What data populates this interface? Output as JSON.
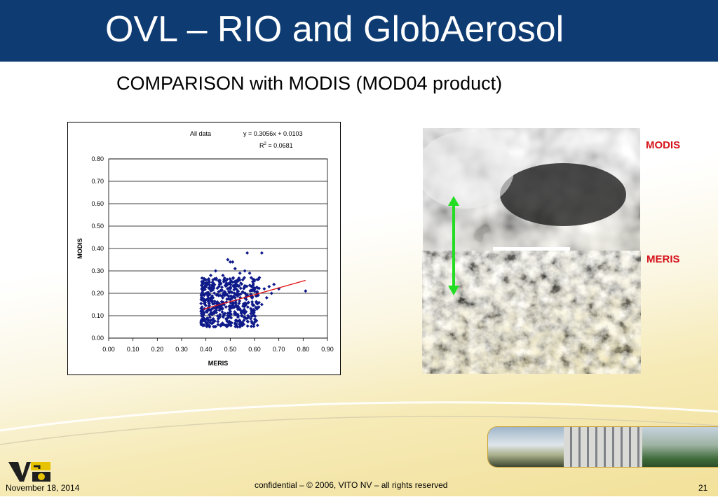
{
  "slide": {
    "title": "OVL – RIO and GlobAerosol",
    "subtitle": "COMPARISON with MODIS (MOD04 product)",
    "footer_date": "November 18, 2014",
    "footer_confidential": "confidential – © 2006, VITO NV – all rights reserved",
    "page_number": "21",
    "logo_text": "VITO"
  },
  "images": {
    "modis_label": "MODIS",
    "meris_label": "MERIS"
  },
  "chart_data": {
    "type": "scatter",
    "title": "All data",
    "equation": "y = 0.3056x + 0.0103",
    "r2_prefix": "R",
    "r2_sup": "2",
    "r2_value": " = 0.0681",
    "xlabel": "MERIS",
    "ylabel": "MODIS",
    "xlim": [
      0,
      0.9
    ],
    "ylim": [
      0,
      0.8
    ],
    "x_ticks": [
      "0.00",
      "0.10",
      "0.20",
      "0.30",
      "0.40",
      "0.50",
      "0.60",
      "0.70",
      "0.80",
      "0.90"
    ],
    "y_ticks": [
      "0.00",
      "0.10",
      "0.20",
      "0.30",
      "0.40",
      "0.50",
      "0.60",
      "0.70",
      "0.80"
    ],
    "trendline": {
      "slope": 0.3056,
      "intercept": 0.0103,
      "x_range": [
        0.39,
        0.81
      ]
    },
    "cluster": {
      "x_range": [
        0.38,
        0.62
      ],
      "y_range": [
        0.05,
        0.27
      ]
    },
    "points": [
      [
        0.49,
        0.35
      ],
      [
        0.51,
        0.34
      ],
      [
        0.5,
        0.34
      ],
      [
        0.57,
        0.38
      ],
      [
        0.63,
        0.38
      ],
      [
        0.81,
        0.21
      ],
      [
        0.7,
        0.22
      ],
      [
        0.68,
        0.24
      ],
      [
        0.66,
        0.23
      ],
      [
        0.62,
        0.27
      ],
      [
        0.6,
        0.26
      ],
      [
        0.64,
        0.22
      ],
      [
        0.58,
        0.29
      ],
      [
        0.56,
        0.3
      ],
      [
        0.54,
        0.29
      ],
      [
        0.65,
        0.18
      ],
      [
        0.63,
        0.15
      ],
      [
        0.61,
        0.13
      ],
      [
        0.67,
        0.2
      ],
      [
        0.59,
        0.12
      ],
      [
        0.42,
        0.28
      ],
      [
        0.44,
        0.3
      ],
      [
        0.47,
        0.28
      ],
      [
        0.52,
        0.31
      ],
      [
        0.39,
        0.09
      ],
      [
        0.38,
        0.07
      ],
      [
        0.4,
        0.26
      ],
      [
        0.45,
        0.06
      ],
      [
        0.55,
        0.07
      ],
      [
        0.53,
        0.05
      ]
    ],
    "colors": {
      "points": "#0f1a8a",
      "trend": "#e01010"
    }
  }
}
